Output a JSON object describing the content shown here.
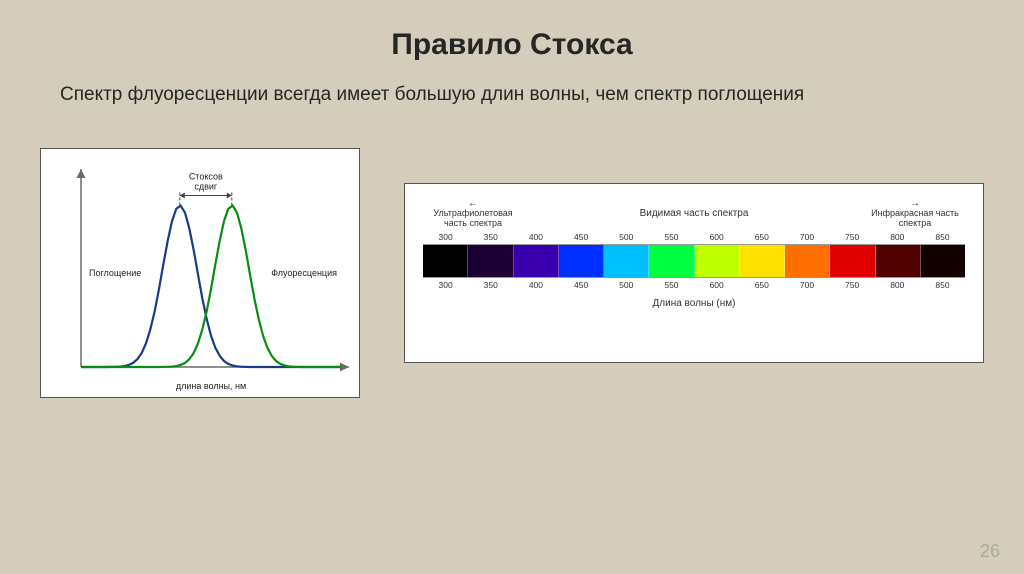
{
  "title": "Правило Стокса",
  "subtitle": "Спектр флуоресценции всегда имеет большую длин волны, чем спектр поглощения",
  "page_number": "26",
  "stokes_chart": {
    "type": "line",
    "xlabel": "длина волны, нм",
    "shift_label": "Стоксов сдвиг",
    "series": [
      {
        "label": "Поглощение",
        "color": "#19398a",
        "peak_x": 0.38,
        "width": 0.32,
        "stroke_width": 2.2
      },
      {
        "label": "Флуоресценция",
        "color": "#0a8c12",
        "peak_x": 0.58,
        "width": 0.32,
        "stroke_width": 2.2
      }
    ],
    "axis_color": "#6b6b6b",
    "background": "#ffffff",
    "label_fontsize": 9,
    "arrow_color": "#444"
  },
  "spectrum": {
    "type": "infographic",
    "left_region": "Ультрафиолетовая часть спектра",
    "mid_region": "Видимая часть спектра",
    "right_region": "Инфракрасная часть спектра",
    "xlabel": "Длина волны (нм)",
    "ticks": [
      "300",
      "350",
      "400",
      "450",
      "500",
      "550",
      "600",
      "650",
      "700",
      "750",
      "800",
      "850"
    ],
    "colors": [
      "#000000",
      "#1a0033",
      "#3a00b0",
      "#0030ff",
      "#00c0ff",
      "#00ff40",
      "#c0ff00",
      "#ffe000",
      "#ff7000",
      "#e00000",
      "#500000",
      "#120000"
    ],
    "background": "#ffffff",
    "tick_fontsize": 8.5,
    "label_fontsize": 10
  }
}
